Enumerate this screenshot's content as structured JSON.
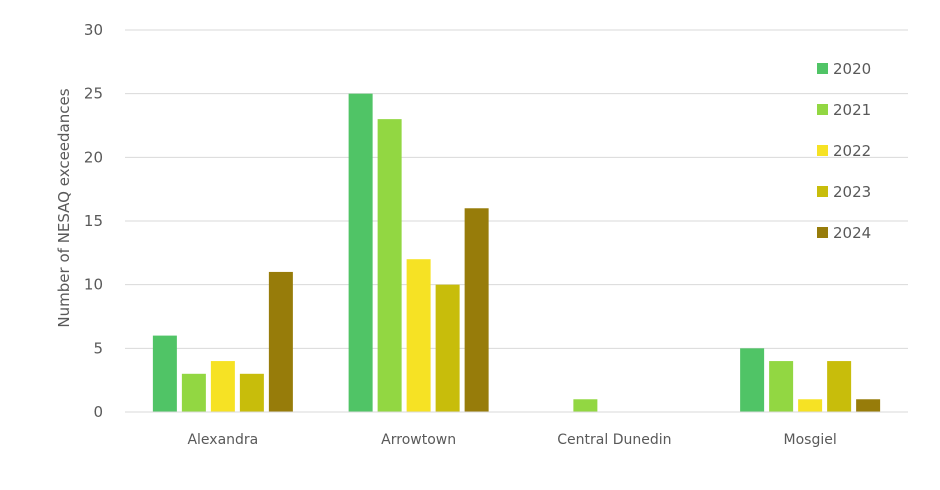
{
  "chart_data": {
    "type": "bar",
    "title": "",
    "xlabel": "",
    "ylabel": "Number of NESAQ exceedances",
    "ylim": [
      0,
      30
    ],
    "yticks": [
      0,
      5,
      10,
      15,
      20,
      25,
      30
    ],
    "grid": true,
    "legend_position": "right",
    "categories": [
      "Alexandra",
      "Arrowtown",
      "Central Dunedin",
      "Mosgiel"
    ],
    "series": [
      {
        "name": "2020",
        "color": "#50c466",
        "values": [
          6,
          25,
          0,
          5
        ]
      },
      {
        "name": "2021",
        "color": "#92d742",
        "values": [
          3,
          23,
          1,
          4
        ]
      },
      {
        "name": "2022",
        "color": "#f6e224",
        "values": [
          4,
          12,
          0,
          1
        ]
      },
      {
        "name": "2023",
        "color": "#c8bd0b",
        "values": [
          3,
          10,
          0,
          4
        ]
      },
      {
        "name": "2024",
        "color": "#977c0a",
        "values": [
          11,
          16,
          0,
          1
        ]
      }
    ]
  }
}
